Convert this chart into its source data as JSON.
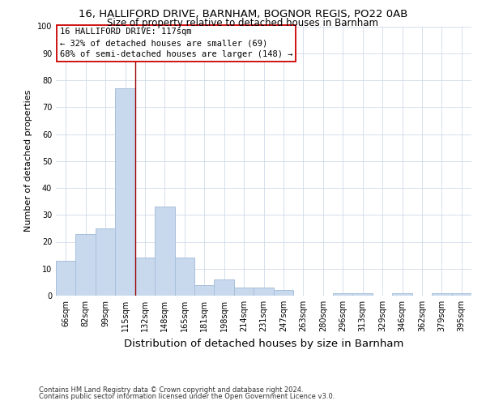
{
  "title1": "16, HALLIFORD DRIVE, BARNHAM, BOGNOR REGIS, PO22 0AB",
  "title2": "Size of property relative to detached houses in Barnham",
  "xlabel": "Distribution of detached houses by size in Barnham",
  "ylabel": "Number of detached properties",
  "categories": [
    "66sqm",
    "82sqm",
    "99sqm",
    "115sqm",
    "132sqm",
    "148sqm",
    "165sqm",
    "181sqm",
    "198sqm",
    "214sqm",
    "231sqm",
    "247sqm",
    "263sqm",
    "280sqm",
    "296sqm",
    "313sqm",
    "329sqm",
    "346sqm",
    "362sqm",
    "379sqm",
    "395sqm"
  ],
  "values": [
    13,
    23,
    25,
    77,
    14,
    33,
    14,
    4,
    6,
    3,
    3,
    2,
    0,
    0,
    1,
    1,
    0,
    1,
    0,
    1,
    1
  ],
  "bar_color": "#c8d9ee",
  "bar_edge_color": "#a8c0da",
  "vline_x_index": 3.5,
  "vline_color": "#990000",
  "annotation_text": "16 HALLIFORD DRIVE: 117sqm\n← 32% of detached houses are smaller (69)\n68% of semi-detached houses are larger (148) →",
  "annotation_box_color": "#cc0000",
  "annotation_fill": "#ffffff",
  "ylim": [
    0,
    100
  ],
  "yticks": [
    0,
    10,
    20,
    30,
    40,
    50,
    60,
    70,
    80,
    90,
    100
  ],
  "footer1": "Contains HM Land Registry data © Crown copyright and database right 2024.",
  "footer2": "Contains public sector information licensed under the Open Government Licence v3.0.",
  "background_color": "#ffffff",
  "grid_color": "#d0daea",
  "title1_fontsize": 9.5,
  "title2_fontsize": 8.5,
  "ylabel_fontsize": 8,
  "xlabel_fontsize": 9.5,
  "tick_fontsize": 7,
  "footer_fontsize": 6,
  "annotation_fontsize": 7.5
}
